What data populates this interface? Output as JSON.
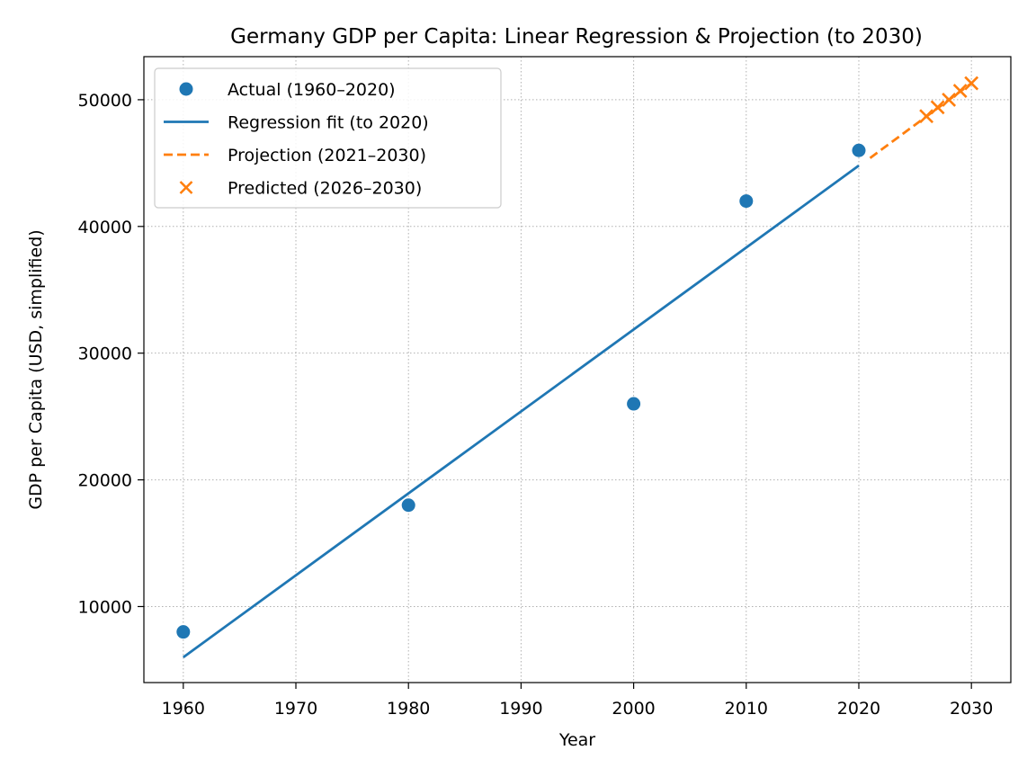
{
  "chart_data": {
    "type": "scatter",
    "title": "Germany GDP per Capita: Linear Regression & Projection (to 2030)",
    "xlabel": "Year",
    "ylabel": "GDP per Capita (USD, simplified)",
    "xlim": [
      1956.5,
      2033.5
    ],
    "ylim": [
      4000,
      53400
    ],
    "xticks": [
      1960,
      1970,
      1980,
      1990,
      2000,
      2010,
      2020,
      2030
    ],
    "yticks": [
      10000,
      20000,
      30000,
      40000,
      50000
    ],
    "grid": true,
    "legend_position": "top-left",
    "series": [
      {
        "name": "Actual (1960–2020)",
        "kind": "scatter",
        "marker": "circle",
        "color": "#1f77b4",
        "x": [
          1960,
          1980,
          2000,
          2010,
          2020
        ],
        "y": [
          8000,
          18000,
          26000,
          42000,
          46000
        ]
      },
      {
        "name": "Regression fit (to 2020)",
        "kind": "line",
        "style": "solid",
        "color": "#1f77b4",
        "x": [
          1960,
          2020
        ],
        "y": [
          6000,
          44800
        ]
      },
      {
        "name": "Projection (2021–2030)",
        "kind": "line",
        "style": "dashed",
        "color": "#ff7f0e",
        "x": [
          2021,
          2030
        ],
        "y": [
          45400,
          51300
        ]
      },
      {
        "name": "Predicted (2026–2030)",
        "kind": "scatter",
        "marker": "x",
        "color": "#ff7f0e",
        "x": [
          2026,
          2027,
          2028,
          2029,
          2030
        ],
        "y": [
          48700,
          49400,
          50000,
          50700,
          51300
        ]
      }
    ]
  }
}
